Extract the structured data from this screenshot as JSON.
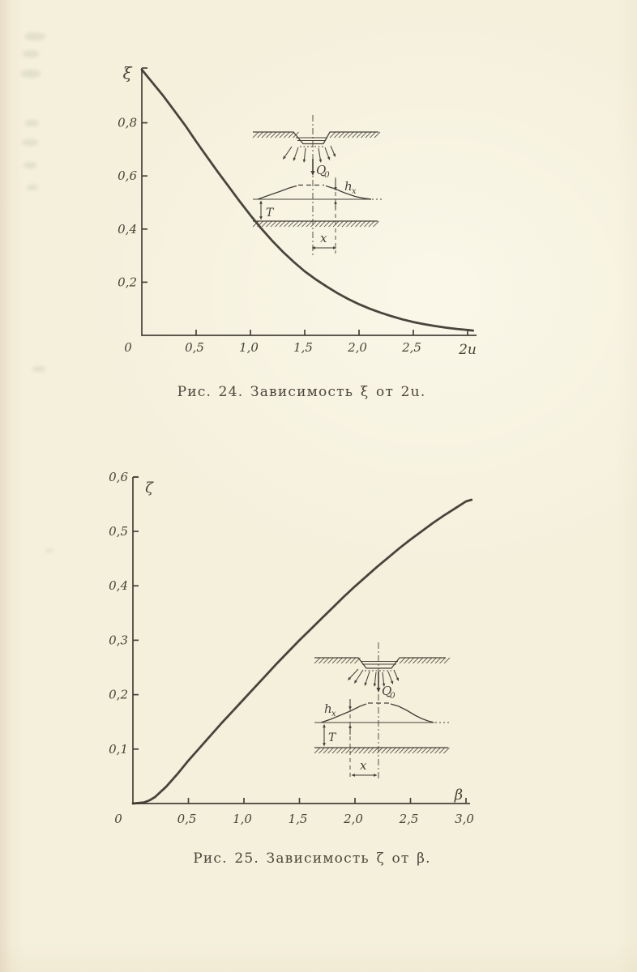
{
  "page": {
    "captions": {
      "fig24": "Рис. 24. Зависимость ξ от 2u.",
      "fig25": "Рис. 25. Зависимость ζ от β."
    }
  },
  "chart_data": [
    {
      "id": "fig24",
      "type": "line",
      "title": "Рис. 24. Зависимость ξ от 2u.",
      "xlabel": "2u",
      "ylabel": "ξ",
      "xlim": [
        0,
        3.0
      ],
      "ylim": [
        0,
        1.0
      ],
      "grid": false,
      "legend": "none",
      "origin_label": "0",
      "x_ticks": [
        0.5,
        1.0,
        1.5,
        2.0,
        2.5,
        3.0
      ],
      "x_tick_labels": [
        "0,5",
        "1,0",
        "1,5",
        "2,0",
        "2,5",
        ""
      ],
      "y_ticks": [
        0.2,
        0.4,
        0.6,
        0.8
      ],
      "y_tick_labels": [
        "0,2",
        "0,4",
        "0,6",
        "0,8"
      ],
      "x": [
        0,
        0.05,
        0.1,
        0.2,
        0.3,
        0.4,
        0.5,
        0.6,
        0.7,
        0.8,
        0.9,
        1.0,
        1.1,
        1.2,
        1.3,
        1.4,
        1.5,
        1.6,
        1.7,
        1.8,
        1.9,
        2.0,
        2.1,
        2.2,
        2.3,
        2.4,
        2.5,
        2.6,
        2.7,
        2.8,
        2.9,
        3.0,
        3.05
      ],
      "y": [
        1.0,
        0.975,
        0.95,
        0.9,
        0.845,
        0.79,
        0.73,
        0.672,
        0.615,
        0.56,
        0.505,
        0.452,
        0.402,
        0.356,
        0.314,
        0.276,
        0.241,
        0.211,
        0.184,
        0.159,
        0.137,
        0.117,
        0.1,
        0.085,
        0.072,
        0.06,
        0.05,
        0.042,
        0.035,
        0.029,
        0.024,
        0.02,
        0.018
      ],
      "curve_color": "#3a372f"
    },
    {
      "id": "fig25",
      "type": "line",
      "title": "Рис. 25. Зависимость ζ от β.",
      "xlabel": "β",
      "ylabel": "ζ",
      "xlim": [
        0,
        3.0
      ],
      "ylim": [
        0,
        0.6
      ],
      "grid": false,
      "legend": "none",
      "origin_label": "0",
      "x_ticks": [
        0.5,
        1.0,
        1.5,
        2.0,
        2.5,
        3.0
      ],
      "x_tick_labels": [
        "0,5",
        "1,0",
        "1,5",
        "2,0",
        "2,5",
        "3,0"
      ],
      "y_ticks": [
        0.1,
        0.2,
        0.3,
        0.4,
        0.5,
        0.6
      ],
      "y_tick_labels": [
        "0,1",
        "0,2",
        "0,3",
        "0,4",
        "0,5",
        "0,6"
      ],
      "x": [
        0,
        0.1,
        0.15,
        0.2,
        0.3,
        0.4,
        0.5,
        0.6,
        0.7,
        0.8,
        0.9,
        1.0,
        1.1,
        1.2,
        1.3,
        1.4,
        1.5,
        1.6,
        1.7,
        1.8,
        1.9,
        2.0,
        2.1,
        2.2,
        2.3,
        2.4,
        2.5,
        2.6,
        2.7,
        2.8,
        2.9,
        3.0,
        3.05
      ],
      "y": [
        0,
        0.002,
        0.006,
        0.012,
        0.031,
        0.054,
        0.079,
        0.102,
        0.125,
        0.148,
        0.17,
        0.192,
        0.214,
        0.236,
        0.258,
        0.279,
        0.3,
        0.32,
        0.34,
        0.36,
        0.38,
        0.399,
        0.417,
        0.435,
        0.452,
        0.469,
        0.485,
        0.5,
        0.515,
        0.529,
        0.542,
        0.555,
        0.558
      ]
    }
  ],
  "insets": {
    "fig24": {
      "flow_label": "Q",
      "flow_sub": "0",
      "head_label": "h",
      "head_sub": "x",
      "depth_label": "T",
      "distance_label": "x"
    },
    "fig25": {
      "flow_label": "Q",
      "flow_sub": "0",
      "head_label": "h",
      "head_sub": "x",
      "depth_label": "T",
      "distance_label": "x"
    }
  }
}
